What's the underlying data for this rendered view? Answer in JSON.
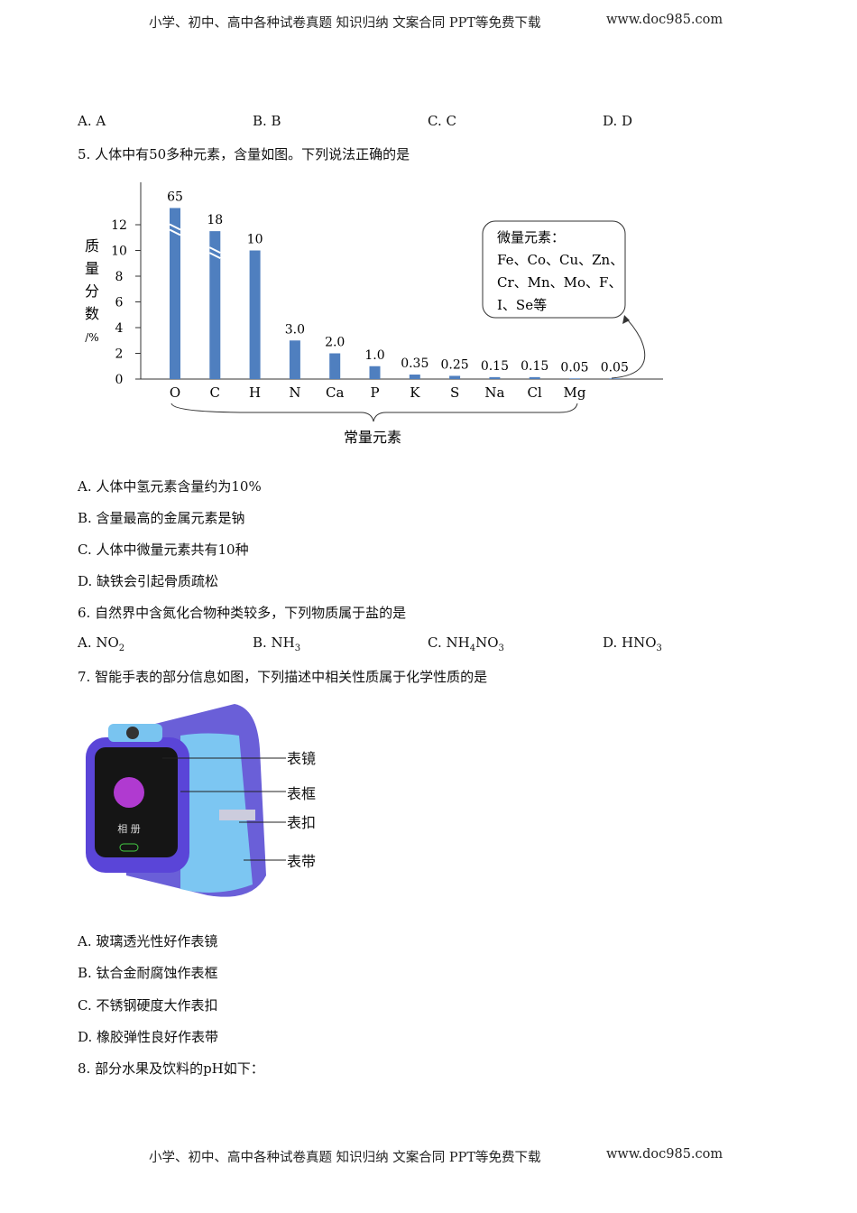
{
  "header": {
    "text": "小学、初中、高中各种试卷真题  知识归纳  文案合同  PPT等免费下载",
    "site": "www.doc985.com"
  },
  "footer": {
    "text": "小学、初中、高中各种试卷真题  知识归纳  文案合同  PPT等免费下载",
    "site": "www.doc985.com"
  },
  "q4_options": [
    "A.  A",
    "B.  B",
    "C.  C",
    "D.  D"
  ],
  "q5": {
    "stem": "5. 人体中有50多种元素，含量如图。下列说法正确的是",
    "options": [
      "A. 人体中氢元素含量约为10%",
      "B. 含量最高的金属元素是钠",
      "C. 人体中微量元素共有10种",
      "D. 缺铁会引起骨质疏松"
    ]
  },
  "chart_data": {
    "type": "bar",
    "categories": [
      "O",
      "C",
      "H",
      "N",
      "Ca",
      "P",
      "K",
      "S",
      "Na",
      "Cl",
      "Mg",
      ""
    ],
    "values": [
      65,
      18,
      10,
      3.0,
      2.0,
      1.0,
      0.35,
      0.25,
      0.15,
      0.15,
      0.05,
      0.05
    ],
    "data_labels": [
      "65",
      "18",
      "10",
      "3.0",
      "2.0",
      "1.0",
      "0.35",
      "0.25",
      "0.15",
      "0.15",
      "0.05",
      "0.05"
    ],
    "broken_bars": [
      "O",
      "C"
    ],
    "ylabel": [
      "质",
      "量",
      "分",
      "数",
      "/%"
    ],
    "yticks": [
      "0",
      "2",
      "4",
      "6",
      "8",
      "10",
      "12"
    ],
    "ylim": [
      0,
      13.5
    ],
    "bar_color": "#4f7fbf",
    "brace_label": "常量元素",
    "callout": [
      "微量元素：",
      "Fe、Co、Cu、Zn、",
      "Cr、Mn、Mo、F、",
      "I、Se等"
    ]
  },
  "q6": {
    "stem": "6. 自然界中含氮化合物种类较多，下列物质属于盐的是",
    "options": [
      {
        "pre": "A.  NO",
        "sub": "2",
        "post": ""
      },
      {
        "pre": "B.  NH",
        "sub": "3",
        "post": ""
      },
      {
        "pre": "C.  NH",
        "sub": "4",
        "post": "NO",
        "sub2": "3"
      },
      {
        "pre": "D.  HNO",
        "sub": "3",
        "post": ""
      }
    ]
  },
  "q7": {
    "stem": "7. 智能手表的部分信息如图，下列描述中相关性质属于化学性质的是",
    "labels": [
      "表镜",
      "表框",
      "表扣",
      "表带"
    ],
    "screen_text": "相 册",
    "options": [
      "A. 玻璃透光性好作表镜",
      "B. 钛合金耐腐蚀作表框",
      "C. 不锈钢硬度大作表扣",
      "D. 橡胶弹性良好作表带"
    ]
  },
  "q8": {
    "stem": "8. 部分水果及饮料的pH如下："
  }
}
